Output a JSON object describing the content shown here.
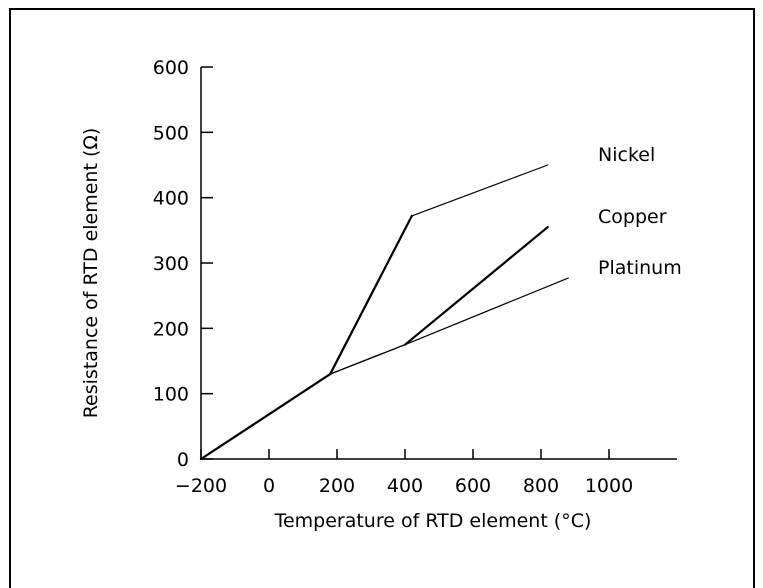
{
  "chart_data": {
    "type": "line",
    "xlabel": "Temperature of RTD element (°C)",
    "ylabel": "Resistance of RTD element (Ω)",
    "xlim": [
      -200,
      1200
    ],
    "ylim": [
      0,
      600
    ],
    "x_ticks": [
      -200,
      0,
      200,
      400,
      600,
      800,
      1000
    ],
    "y_ticks": [
      0,
      100,
      200,
      300,
      400,
      500,
      600
    ],
    "grid": false,
    "series": [
      {
        "name": "Nickel",
        "x": [
          -200,
          180,
          420,
          820
        ],
        "y": [
          0,
          130,
          372,
          450
        ]
      },
      {
        "name": "Copper",
        "x": [
          -200,
          180,
          400,
          820
        ],
        "y": [
          0,
          130,
          175,
          355
        ]
      },
      {
        "name": "Platinum",
        "x": [
          -200,
          180,
          400,
          880
        ],
        "y": [
          0,
          130,
          175,
          277
        ]
      }
    ]
  }
}
